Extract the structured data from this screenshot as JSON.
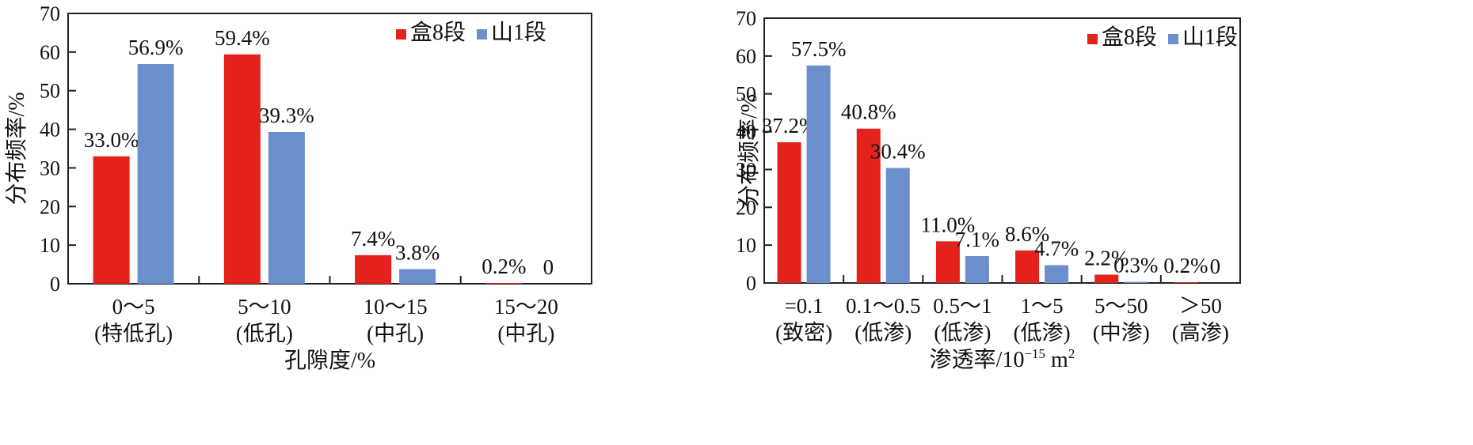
{
  "chart_data": [
    {
      "type": "bar",
      "title": "",
      "xlabel": "孔隙度/%",
      "ylabel": "分布频率/%",
      "ylim": [
        0,
        70
      ],
      "yticks": [
        0,
        10,
        20,
        30,
        40,
        50,
        60,
        70
      ],
      "grid": false,
      "legend_position": "top-right",
      "categories": [
        {
          "top": "0～5",
          "bottom": "(特低孔)"
        },
        {
          "top": "5～10",
          "bottom": "(低孔)"
        },
        {
          "top": "10～15",
          "bottom": "(中孔)"
        },
        {
          "top": "15～20",
          "bottom": "(中孔)"
        }
      ],
      "series": [
        {
          "name": "盒8段",
          "color": "#e3221c",
          "values": [
            33.0,
            59.4,
            7.4,
            0.2
          ],
          "labels": [
            "33.0%",
            "59.4%",
            "7.4%",
            "0.2%"
          ]
        },
        {
          "name": "山1段",
          "color": "#6b8fcc",
          "values": [
            56.9,
            39.3,
            3.8,
            0
          ],
          "labels": [
            "56.9%",
            "39.3%",
            "3.8%",
            "0"
          ]
        }
      ]
    },
    {
      "type": "bar",
      "title": "",
      "xlabel": "渗透率/10",
      "xlabel_sup": "−15",
      "xlabel_unit": " m",
      "xlabel_unit_sup": "2",
      "ylabel": "分布频率/%",
      "ylim": [
        0,
        70
      ],
      "yticks": [
        0,
        10,
        20,
        30,
        40,
        50,
        60,
        70
      ],
      "grid": false,
      "legend_position": "top-right",
      "categories": [
        {
          "top": "=0.1",
          "bottom": "(致密)"
        },
        {
          "top": "0.1～0.5",
          "bottom": "(低渗)"
        },
        {
          "top": "0.5～1",
          "bottom": "(低渗)"
        },
        {
          "top": "1～5",
          "bottom": "(低渗)"
        },
        {
          "top": "5～50",
          "bottom": "(中渗)"
        },
        {
          "top": "＞50",
          "bottom": "(高渗)"
        }
      ],
      "series": [
        {
          "name": "盒8段",
          "color": "#e3221c",
          "values": [
            37.2,
            40.8,
            11.0,
            8.6,
            2.2,
            0.2
          ],
          "labels": [
            "37.2%",
            "40.8%",
            "11.0%",
            "8.6%",
            "2.2%",
            "0.2%"
          ]
        },
        {
          "name": "山1段",
          "color": "#6b8fcc",
          "values": [
            57.5,
            30.4,
            7.1,
            4.7,
            0.3,
            0
          ],
          "labels": [
            "57.5%",
            "30.4%",
            "7.1%",
            "4.7%",
            "0.3%",
            "0"
          ]
        }
      ]
    }
  ]
}
